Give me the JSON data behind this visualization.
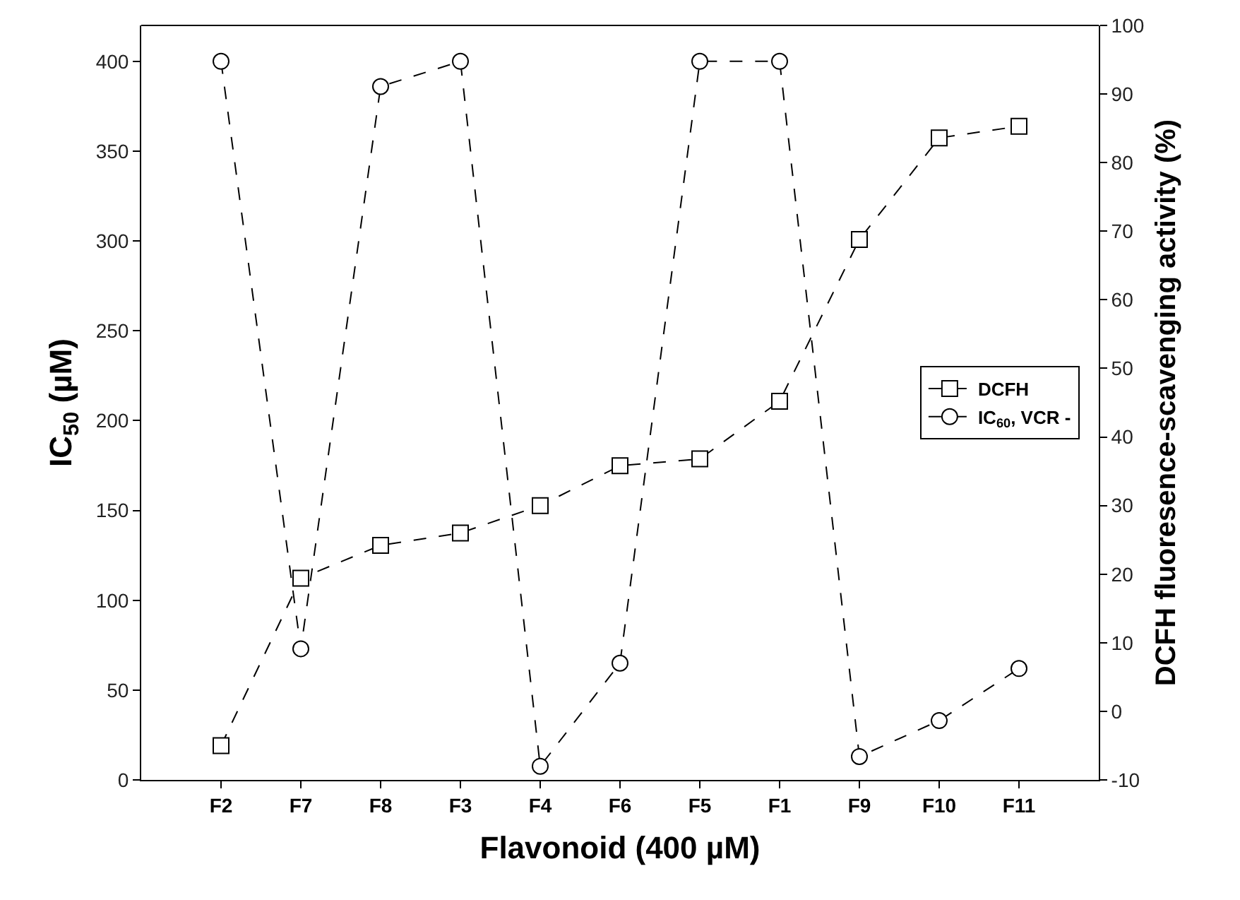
{
  "chart_data": {
    "type": "line",
    "xlabel": "Flavonoid (400 µM)",
    "ylabel": "IC$_{50}$ (µM)",
    "y2label": "DCFH fluoresence-scavenging activity (%)",
    "categories": [
      "F2",
      "F7",
      "F8",
      "F3",
      "F4",
      "F6",
      "F5",
      "F1",
      "F9",
      "F10",
      "F11"
    ],
    "series": [
      {
        "name": "DCFH",
        "color": "#000000",
        "axis": "y2",
        "marker": "square",
        "values": [
          -5.0,
          19.4,
          24.2,
          26.0,
          30.0,
          35.8,
          36.8,
          45.2,
          68.8,
          83.6,
          85.3
        ]
      },
      {
        "name": "IC$_{60}$, VCR -",
        "color": "#000000",
        "marker": "circle",
        "values": [
          400,
          73,
          386,
          400,
          7.6,
          65,
          400,
          400,
          13,
          33,
          62
        ]
      }
    ],
    "ylim": [
      0,
      420
    ],
    "yticks": [
      0,
      50,
      100,
      150,
      200,
      250,
      300,
      350,
      400
    ],
    "y2lim": [
      -10,
      100
    ],
    "y2ticks": [
      -10,
      0,
      10,
      20,
      30,
      40,
      50,
      60,
      70,
      80,
      90,
      100
    ],
    "line_style": "dashed",
    "legend": "right"
  }
}
